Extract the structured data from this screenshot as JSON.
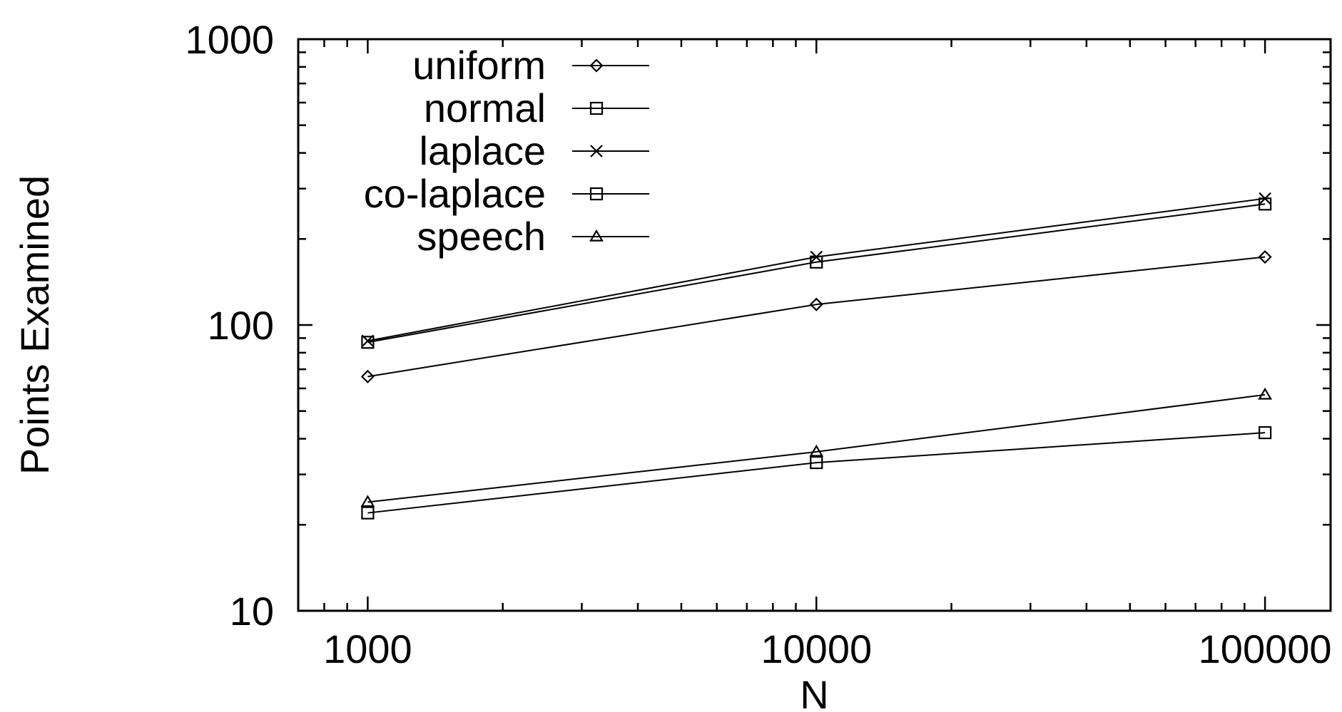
{
  "chart_data": {
    "type": "line",
    "title": "",
    "xlabel": "N",
    "ylabel": "Points Examined",
    "x_scale": "log",
    "y_scale": "log",
    "xlim": [
      700,
      140000
    ],
    "ylim": [
      10,
      1000
    ],
    "x_ticks": [
      1000,
      10000,
      100000
    ],
    "x_tick_labels": [
      "1000",
      "10000",
      "100000"
    ],
    "y_ticks": [
      10,
      100,
      1000
    ],
    "y_tick_labels": [
      "10",
      "100",
      "1000"
    ],
    "grid": false,
    "legend_position": "top-left",
    "x": [
      1000,
      10000,
      100000
    ],
    "series": [
      {
        "name": "uniform",
        "marker": "diamond",
        "values": [
          66,
          118,
          173
        ]
      },
      {
        "name": "normal",
        "marker": "square",
        "values": [
          22,
          33,
          42
        ]
      },
      {
        "name": "laplace",
        "marker": "cross",
        "values": [
          88,
          173,
          277
        ]
      },
      {
        "name": "co-laplace",
        "marker": "square",
        "values": [
          87,
          166,
          265
        ]
      },
      {
        "name": "speech",
        "marker": "triangle",
        "values": [
          24,
          36,
          57
        ]
      }
    ]
  }
}
